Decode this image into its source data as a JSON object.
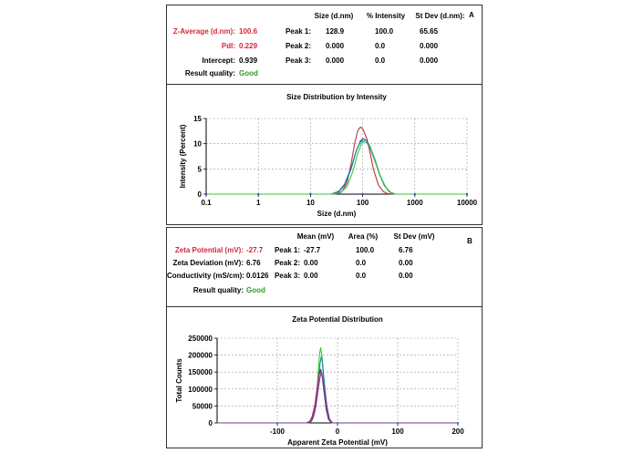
{
  "panelA": {
    "letter": "A",
    "headers": {
      "size": "Size (d.nm)",
      "intensity": "% Intensity",
      "stdev": "St Dev (d.nm):"
    },
    "left": {
      "zavg_label": "Z-Average (d.nm):",
      "zavg_value": "100.6",
      "pdi_label": "PdI:",
      "pdi_value": "0.229",
      "intercept_label": "Intercept:",
      "intercept_value": "0.939",
      "quality_label": "Result quality:",
      "quality_value": "Good"
    },
    "peaks": [
      {
        "label": "Peak 1:",
        "size": "128.9",
        "intensity": "100.0",
        "stdev": "65.65"
      },
      {
        "label": "Peak 2:",
        "size": "0.000",
        "intensity": "0.0",
        "stdev": "0.000"
      },
      {
        "label": "Peak 3:",
        "size": "0.000",
        "intensity": "0.0",
        "stdev": "0.000"
      }
    ]
  },
  "panelB": {
    "letter": "B",
    "headers": {
      "mean": "Mean (mV)",
      "area": "Area (%)",
      "stdev": "St Dev (mV)"
    },
    "left": {
      "zeta_label": "Zeta Potential (mV):",
      "zeta_value": "-27.7",
      "dev_label": "Zeta Deviation (mV):",
      "dev_value": "6.76",
      "cond_label": "Conductivity (mS/cm):",
      "cond_value": "0.0126",
      "quality_label": "Result quality:",
      "quality_value": "Good"
    },
    "peaks": [
      {
        "label": "Peak 1:",
        "mean": "-27.7",
        "area": "100.0",
        "stdev": "6.76"
      },
      {
        "label": "Peak 2:",
        "mean": "0.00",
        "area": "0.0",
        "stdev": "0.00"
      },
      {
        "label": "Peak 3:",
        "mean": "0.00",
        "area": "0.0",
        "stdev": "0.00"
      }
    ]
  },
  "colors": {
    "red": "#d7263d",
    "green": "#2e9a2e",
    "blue": "#2040c0",
    "teal": "#1a8a8a",
    "darkred": "#c0304a",
    "lime": "#39c639",
    "purple": "#7a3aa0"
  },
  "chart_data": [
    {
      "type": "line",
      "title": "Size Distribution by Intensity",
      "xlabel": "Size (d.nm)",
      "ylabel": "Intensity (Percent)",
      "xscale": "log",
      "xlim": [
        0.1,
        10000
      ],
      "ylim": [
        0,
        15
      ],
      "xticks": [
        "0.1",
        "1",
        "10",
        "100",
        "1000",
        "10000"
      ],
      "yticks": [
        "0",
        "5",
        "10",
        "15"
      ],
      "grid": true,
      "series": [
        {
          "color": "#c0304a",
          "x": [
            0.1,
            30,
            40,
            50,
            60,
            70,
            80,
            90,
            100,
            120,
            140,
            160,
            200,
            250,
            300,
            400,
            10000
          ],
          "y": [
            0,
            0,
            0.5,
            2.2,
            6,
            10,
            12.5,
            13.3,
            13,
            11,
            8,
            5,
            1.8,
            0.5,
            0.1,
            0,
            0
          ]
        },
        {
          "color": "#2040c0",
          "x": [
            0.1,
            25,
            35,
            45,
            60,
            75,
            90,
            100,
            120,
            140,
            170,
            210,
            260,
            330,
            420,
            10000
          ],
          "y": [
            0,
            0,
            0.5,
            1.8,
            5,
            8.5,
            10.5,
            11,
            10.6,
            9.3,
            7,
            4,
            1.8,
            0.4,
            0,
            0
          ]
        },
        {
          "color": "#1a8a8a",
          "x": [
            0.1,
            25,
            35,
            45,
            60,
            75,
            90,
            100,
            120,
            140,
            170,
            210,
            260,
            330,
            420,
            10000
          ],
          "y": [
            0,
            0,
            0.6,
            2,
            5.2,
            8.6,
            10.3,
            10.6,
            10.2,
            9,
            6.7,
            3.9,
            1.7,
            0.4,
            0,
            0
          ]
        },
        {
          "color": "#39c639",
          "x": [
            0.1,
            28,
            38,
            50,
            65,
            80,
            95,
            105,
            125,
            150,
            180,
            220,
            280,
            350,
            430,
            10000
          ],
          "y": [
            0,
            0,
            0.3,
            1.5,
            4.5,
            8,
            10,
            10.5,
            10,
            8.5,
            6,
            3.5,
            1.3,
            0.3,
            0,
            0
          ]
        }
      ]
    },
    {
      "type": "line",
      "title": "Zeta Potential Distribution",
      "xlabel": "Apparent Zeta Potential (mV)",
      "ylabel": "Total Counts",
      "xlim": [
        -200,
        200
      ],
      "ylim": [
        0,
        250000
      ],
      "xticks": [
        "-100",
        "0",
        "100",
        "200"
      ],
      "yticks": [
        "0",
        "50000",
        "100000",
        "150000",
        "200000",
        "250000"
      ],
      "grid": true,
      "series": [
        {
          "color": "#39c639",
          "x": [
            -200,
            -48,
            -42,
            -38,
            -35,
            -32,
            -30,
            -28,
            -26,
            -24,
            -22,
            -19,
            -15,
            -10,
            200
          ],
          "y": [
            0,
            0,
            8000,
            30000,
            75000,
            150000,
            200000,
            222000,
            200000,
            150000,
            90000,
            40000,
            10000,
            0,
            0
          ]
        },
        {
          "color": "#1a8a8a",
          "x": [
            -200,
            -50,
            -44,
            -40,
            -36,
            -32,
            -29,
            -27,
            -25,
            -22,
            -18,
            -14,
            -10,
            200
          ],
          "y": [
            0,
            0,
            6000,
            25000,
            60000,
            120000,
            175000,
            195000,
            180000,
            120000,
            55000,
            15000,
            0,
            0
          ]
        },
        {
          "color": "#2040c0",
          "x": [
            -200,
            -50,
            -44,
            -40,
            -36,
            -33,
            -30,
            -28,
            -26,
            -23,
            -19,
            -15,
            -10,
            200
          ],
          "y": [
            0,
            0,
            5000,
            22000,
            55000,
            110000,
            150000,
            158000,
            145000,
            100000,
            45000,
            12000,
            0,
            0
          ]
        },
        {
          "color": "#c0304a",
          "x": [
            -200,
            -52,
            -46,
            -42,
            -38,
            -34,
            -31,
            -28,
            -25,
            -21,
            -17,
            -13,
            -8,
            200
          ],
          "y": [
            0,
            0,
            5000,
            20000,
            50000,
            100000,
            140000,
            152000,
            135000,
            90000,
            40000,
            10000,
            0,
            0
          ]
        },
        {
          "color": "#7a3aa0",
          "x": [
            -200,
            -50,
            -44,
            -40,
            -36,
            -32,
            -29,
            -27,
            -25,
            -22,
            -18,
            -14,
            -10,
            200
          ],
          "y": [
            0,
            0,
            4000,
            18000,
            48000,
            100000,
            135000,
            148000,
            135000,
            92000,
            42000,
            11000,
            0,
            0
          ]
        }
      ]
    }
  ]
}
